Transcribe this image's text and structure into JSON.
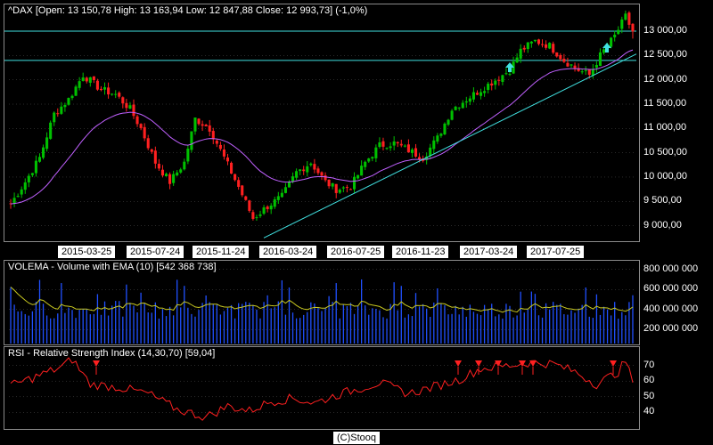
{
  "price_header": "^DAX [Open: 13 150,78  High: 13 163,94  Low: 12 847,88  Close: 12 993,73] (-1,0%)",
  "volume_header": "VOLEMA - Volume with EMA (10) [542 368 738]",
  "rsi_header": "RSI - Relative Strength Index (14,30,70) [59,04]",
  "credit": "(C)Stooq",
  "colors": {
    "up": "#00c000",
    "down": "#ff2020",
    "ema": "#c060ff",
    "trend": "#40e0e0",
    "volume": "#2050ff",
    "volume_ema": "#c8c820",
    "rsi": "#ff2020",
    "grid": "#555555"
  },
  "chart_data": [
    {
      "type": "candlestick",
      "title": "^DAX",
      "x_ticks": [
        "2015-03-25",
        "2015-07-24",
        "2015-11-24",
        "2016-03-24",
        "2016-07-25",
        "2016-11-23",
        "2017-03-24",
        "2017-07-25"
      ],
      "y_ticks": [
        "9 000,00",
        "9 500,00",
        "10 000,00",
        "10 500,00",
        "11 000,00",
        "11 500,00",
        "12 000,00",
        "12 500,00",
        "13 000,00"
      ],
      "ylim": [
        8700,
        13550
      ],
      "last_bar": {
        "open": 13150.78,
        "high": 13163.94,
        "low": 12847.88,
        "close": 12993.73,
        "change": "-1,0%"
      },
      "horizontal_lines": [
        13000,
        12400
      ],
      "trendline": {
        "from": [
          "2016-02-11",
          8750
        ],
        "to": [
          "2017-11-08",
          12600
        ]
      },
      "signal_arrows": [
        "2017-04-13",
        "2017-10-27"
      ],
      "weekly_close_anchors": [
        [
          0,
          9450
        ],
        [
          4,
          9900
        ],
        [
          8,
          10400
        ],
        [
          12,
          11300
        ],
        [
          16,
          11600
        ],
        [
          20,
          12100
        ],
        [
          25,
          11800
        ],
        [
          29,
          11700
        ],
        [
          33,
          11400
        ],
        [
          36,
          11000
        ],
        [
          40,
          10300
        ],
        [
          44,
          9900
        ],
        [
          48,
          10300
        ],
        [
          51,
          11200
        ],
        [
          55,
          11000
        ],
        [
          59,
          10400
        ],
        [
          63,
          9800
        ],
        [
          67,
          9150
        ],
        [
          71,
          9400
        ],
        [
          75,
          9600
        ],
        [
          79,
          10100
        ],
        [
          83,
          10300
        ],
        [
          87,
          9900
        ],
        [
          90,
          9750
        ],
        [
          94,
          9800
        ],
        [
          98,
          10300
        ],
        [
          102,
          10650
        ],
        [
          106,
          10700
        ],
        [
          110,
          10550
        ],
        [
          114,
          10400
        ],
        [
          118,
          10800
        ],
        [
          122,
          11400
        ],
        [
          126,
          11600
        ],
        [
          130,
          11800
        ],
        [
          134,
          12000
        ],
        [
          138,
          12200
        ],
        [
          141,
          12600
        ],
        [
          145,
          12800
        ],
        [
          149,
          12700
        ],
        [
          153,
          12400
        ],
        [
          157,
          12200
        ],
        [
          160,
          12100
        ],
        [
          163,
          12500
        ],
        [
          167,
          12900
        ],
        [
          170,
          13300
        ],
        [
          172,
          12990
        ]
      ]
    },
    {
      "type": "bar",
      "title": "VOLEMA - Volume with EMA (10)",
      "y_ticks": [
        "200 000 000",
        "400 000 000",
        "600 000 000",
        "800 000 000"
      ],
      "ylim": [
        60000000,
        860000000
      ],
      "last_value": 542368738
    },
    {
      "type": "line",
      "title": "RSI - Relative Strength Index (14,30,70)",
      "y_ticks": [
        "40",
        "50",
        "60",
        "70"
      ],
      "ylim": [
        30,
        80
      ],
      "last_value": 59.04
    }
  ]
}
